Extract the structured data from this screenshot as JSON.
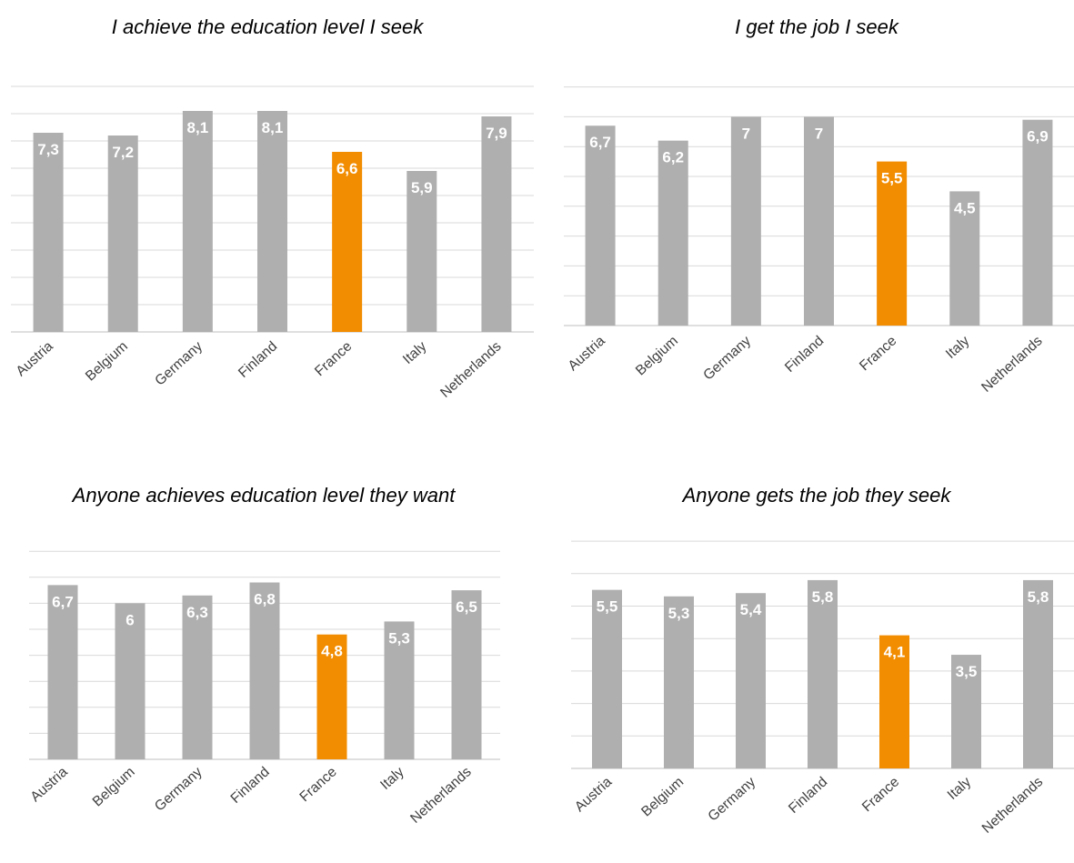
{
  "colors": {
    "default_bar": "#afafaf",
    "highlight_bar": "#f28c00",
    "gridline": "#d9d9d9",
    "data_label": "#ffffff",
    "tick_label": "#404040"
  },
  "chart_data": [
    {
      "type": "bar",
      "title": "I achieve the education level I seek",
      "categories": [
        "Austria",
        "Belgium",
        "Germany",
        "Finland",
        "France",
        "Italy",
        "Netherlands"
      ],
      "values": [
        7.3,
        7.2,
        8.1,
        8.1,
        6.6,
        5.9,
        7.9
      ],
      "value_labels": [
        "7,3",
        "7,2",
        "8,1",
        "8,1",
        "6,6",
        "5,9",
        "7,9"
      ],
      "highlight": "France",
      "ylim": [
        0,
        9
      ],
      "grid": true,
      "axis_tick_labels": false,
      "legend": "none"
    },
    {
      "type": "bar",
      "title": "I get the job I seek",
      "categories": [
        "Austria",
        "Belgium",
        "Germany",
        "Finland",
        "France",
        "Italy",
        "Netherlands"
      ],
      "values": [
        6.7,
        6.2,
        7,
        7,
        5.5,
        4.5,
        6.9
      ],
      "value_labels": [
        "6,7",
        "6,2",
        "7",
        "7",
        "5,5",
        "4,5",
        "6,9"
      ],
      "highlight": "France",
      "ylim": [
        0,
        8
      ],
      "grid": true,
      "axis_tick_labels": false,
      "legend": "none"
    },
    {
      "type": "bar",
      "title": "Anyone achieves education level they want",
      "categories": [
        "Austria",
        "Belgium",
        "Germany",
        "Finland",
        "France",
        "Italy",
        "Netherlands"
      ],
      "values": [
        6.7,
        6,
        6.3,
        6.8,
        4.8,
        5.3,
        6.5
      ],
      "value_labels": [
        "6,7",
        "6",
        "6,3",
        "6,8",
        "4,8",
        "5,3",
        "6,5"
      ],
      "highlight": "France",
      "ylim": [
        0,
        8
      ],
      "grid": true,
      "axis_tick_labels": false,
      "legend": "none"
    },
    {
      "type": "bar",
      "title": "Anyone gets the job they seek",
      "categories": [
        "Austria",
        "Belgium",
        "Germany",
        "Finland",
        "France",
        "Italy",
        "Netherlands"
      ],
      "values": [
        5.5,
        5.3,
        5.4,
        5.8,
        4.1,
        3.5,
        5.8
      ],
      "value_labels": [
        "5,5",
        "5,3",
        "5,4",
        "5,8",
        "4,1",
        "3,5",
        "5,8"
      ],
      "highlight": "France",
      "ylim": [
        0,
        7
      ],
      "grid": true,
      "axis_tick_labels": false,
      "legend": "none"
    }
  ]
}
